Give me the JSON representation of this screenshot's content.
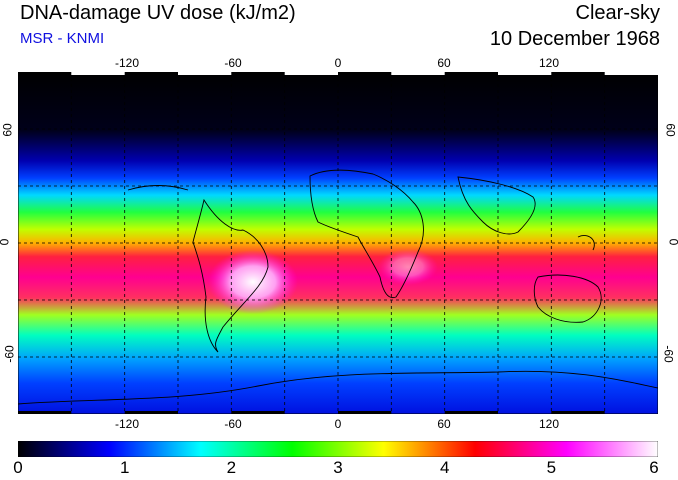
{
  "header": {
    "title": "DNA-damage UV dose (kJ/m2)",
    "credit": "MSR - KNMI",
    "sky_condition": "Clear-sky",
    "date": "10 December 1968"
  },
  "map": {
    "lon_ticks": [
      "-120",
      "-60",
      "0",
      "60",
      "120"
    ],
    "lat_ticks": [
      "60",
      "0",
      "-60"
    ],
    "lon_range": [
      -180,
      180
    ],
    "lat_range": [
      -90,
      90
    ]
  },
  "colorbar": {
    "labels": [
      "0",
      "1",
      "2",
      "3",
      "4",
      "5",
      "6"
    ],
    "min": 0,
    "max": 6,
    "colors": [
      "#000000",
      "#0000ff",
      "#00ffff",
      "#00ff00",
      "#ffff00",
      "#ff0000",
      "#ff00ff",
      "#ffffff"
    ]
  }
}
